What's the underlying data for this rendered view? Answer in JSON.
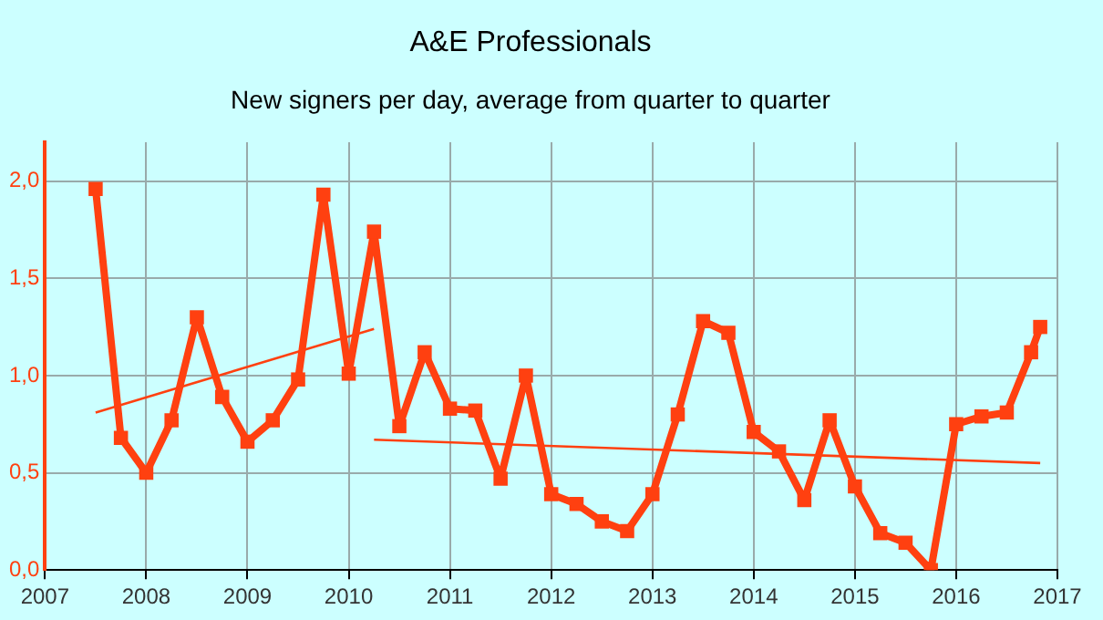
{
  "chart_data": {
    "type": "line",
    "title": "A&E Professionals",
    "subtitle": "New signers per day, average from quarter to quarter",
    "xlim": [
      2007,
      2017
    ],
    "xticks": [
      2007,
      2008,
      2009,
      2010,
      2011,
      2012,
      2013,
      2014,
      2015,
      2016,
      2017
    ],
    "ylim": [
      0,
      2.2
    ],
    "yticks": [
      {
        "value": 0,
        "label": "0,0"
      },
      {
        "value": 0.5,
        "label": "0,5"
      },
      {
        "value": 1,
        "label": "1,0"
      },
      {
        "value": 1.5,
        "label": "1,5"
      },
      {
        "value": 2,
        "label": "2,0"
      }
    ],
    "grid": true,
    "legend": false,
    "marker": "square",
    "line_style": "solid",
    "series": [
      {
        "color": "#ff4010",
        "x": [
          2007.5,
          2007.75,
          2008,
          2008.25,
          2008.5,
          2008.75,
          2009,
          2009.25,
          2009.5,
          2009.75,
          2010,
          2010.25,
          2010.5,
          2010.75,
          2011,
          2011.25,
          2011.5,
          2011.75,
          2012,
          2012.25,
          2012.5,
          2012.75,
          2013,
          2013.25,
          2013.5,
          2013.75,
          2014,
          2014.25,
          2014.5,
          2014.75,
          2015,
          2015.25,
          2015.5,
          2015.75,
          2016,
          2016.25,
          2016.5,
          2016.74,
          2016.83
        ],
        "values": [
          1.96,
          0.68,
          0.5,
          0.77,
          1.3,
          0.89,
          0.66,
          0.77,
          0.98,
          1.93,
          1.01,
          1.74,
          0.74,
          1.12,
          0.83,
          0.82,
          0.47,
          1.0,
          0.39,
          0.34,
          0.25,
          0.2,
          0.39,
          0.8,
          1.28,
          1.22,
          0.71,
          0.61,
          0.36,
          0.77,
          0.43,
          0.19,
          0.14,
          0,
          0.75,
          0.79,
          0.81,
          1.12,
          1.25
        ]
      },
      {
        "type": "line",
        "marker": "none",
        "color": "#ff4010",
        "x": [
          2007.5,
          2010.25
        ],
        "values": [
          0.81,
          1.24
        ]
      },
      {
        "type": "line",
        "marker": "none",
        "color": "#ff4010",
        "x": [
          2010.25,
          2016.83
        ],
        "values": [
          0.67,
          0.55
        ]
      }
    ]
  }
}
